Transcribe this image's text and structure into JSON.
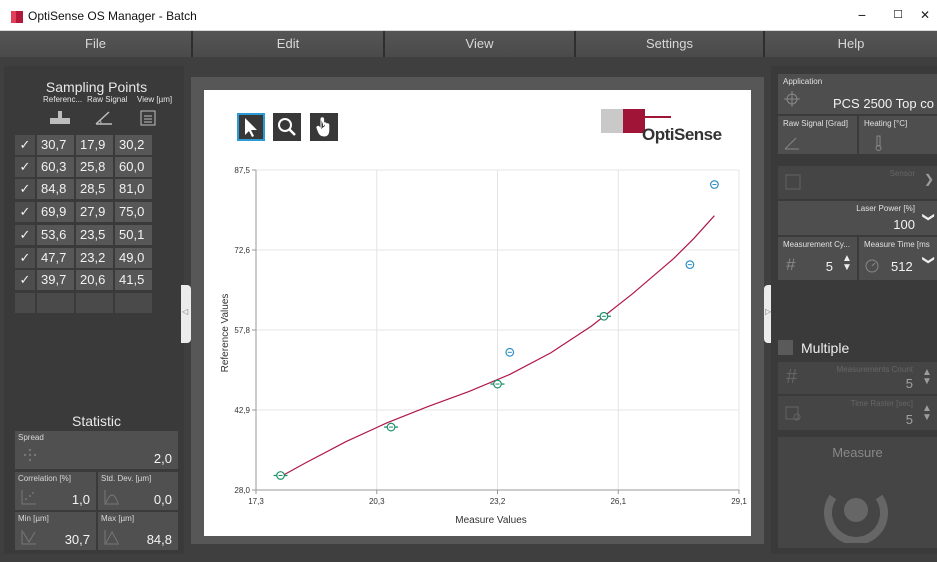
{
  "window": {
    "title": "OptiSense OS Manager - Batch",
    "minimize": "−",
    "maximize": "☐",
    "close": "✕"
  },
  "menu": [
    "File",
    "Edit",
    "View",
    "Settings",
    "Help"
  ],
  "sampling": {
    "title": "Sampling Points",
    "columns": [
      "Referenc...",
      "Raw Signal",
      "View [µm]"
    ],
    "check_glyph": "✓",
    "rows": [
      [
        "30,7",
        "17,9",
        "30,2"
      ],
      [
        "60,3",
        "25,8",
        "60,0"
      ],
      [
        "84,8",
        "28,5",
        "81,0"
      ],
      [
        "69,9",
        "27,9",
        "75,0"
      ],
      [
        "53,6",
        "23,5",
        "50,1"
      ],
      [
        "47,7",
        "23,2",
        "49,0"
      ],
      [
        "39,7",
        "20,6",
        "41,5"
      ]
    ]
  },
  "statistic": {
    "title": "Statistic",
    "spread": {
      "label": "Spread",
      "value": "2,0"
    },
    "correlation": {
      "label": "Correlation [%]",
      "value": "1,0"
    },
    "std_dev": {
      "label": "Std. Dev. [µm]",
      "value": "0,0"
    },
    "min": {
      "label": "Min [µm]",
      "value": "30,7"
    },
    "max": {
      "label": "Max [µm]",
      "value": "84,8"
    }
  },
  "logo": {
    "text": "OptiSense"
  },
  "chart_data": {
    "type": "scatter",
    "xlabel": "Measure Values",
    "ylabel": "Reference Values",
    "xlim": [
      17.3,
      29.1
    ],
    "ylim": [
      28.0,
      87.5
    ],
    "xticks": [
      "17,3",
      "20,3",
      "23,2",
      "26,1",
      "29,1"
    ],
    "yticks": [
      "28,0",
      "42,9",
      "57,8",
      "72,6",
      "87,5"
    ],
    "points": [
      {
        "x": 17.9,
        "y": 30.7,
        "type": "used"
      },
      {
        "x": 20.6,
        "y": 39.7,
        "type": "used"
      },
      {
        "x": 23.2,
        "y": 47.7,
        "type": "used"
      },
      {
        "x": 23.5,
        "y": 53.6,
        "type": "outlier"
      },
      {
        "x": 25.8,
        "y": 60.3,
        "type": "used"
      },
      {
        "x": 27.9,
        "y": 69.9,
        "type": "outlier"
      },
      {
        "x": 28.5,
        "y": 84.8,
        "type": "outlier"
      }
    ],
    "fit_curve": {
      "x": [
        17.9,
        18.5,
        19.5,
        20.5,
        21.5,
        22.5,
        23.5,
        24.5,
        25.5,
        26.5,
        27.5,
        28.0,
        28.5
      ],
      "y": [
        30.5,
        33.0,
        37.0,
        40.5,
        43.5,
        46.3,
        49.5,
        53.5,
        58.5,
        64.5,
        71.0,
        74.8,
        79.0
      ]
    },
    "grid": true,
    "colors": {
      "curve": "#b0164b",
      "point": "#1f8f6a",
      "outlier": "#2f8fc2",
      "grid": "#e4e4e4"
    }
  },
  "right": {
    "application": {
      "label": "Application",
      "value": "PCS 2500 Top co"
    },
    "raw_signal": {
      "label": "Raw Signal [Grad]"
    },
    "heating": {
      "label": "Heating [°C]"
    },
    "sensor": {
      "label": "Sensor"
    },
    "laser": {
      "label": "Laser Power [%]",
      "value": "100"
    },
    "cycles": {
      "label": "Measurement Cy...",
      "value": "5"
    },
    "time": {
      "label": "Measure Time [ms",
      "value": "512"
    },
    "multiple": {
      "label": "Multiple"
    },
    "count": {
      "label": "Measurements Count",
      "value": "5"
    },
    "raster": {
      "label": "Time Raster [sec]",
      "value": "5"
    },
    "measure": {
      "label": "Measure"
    }
  }
}
